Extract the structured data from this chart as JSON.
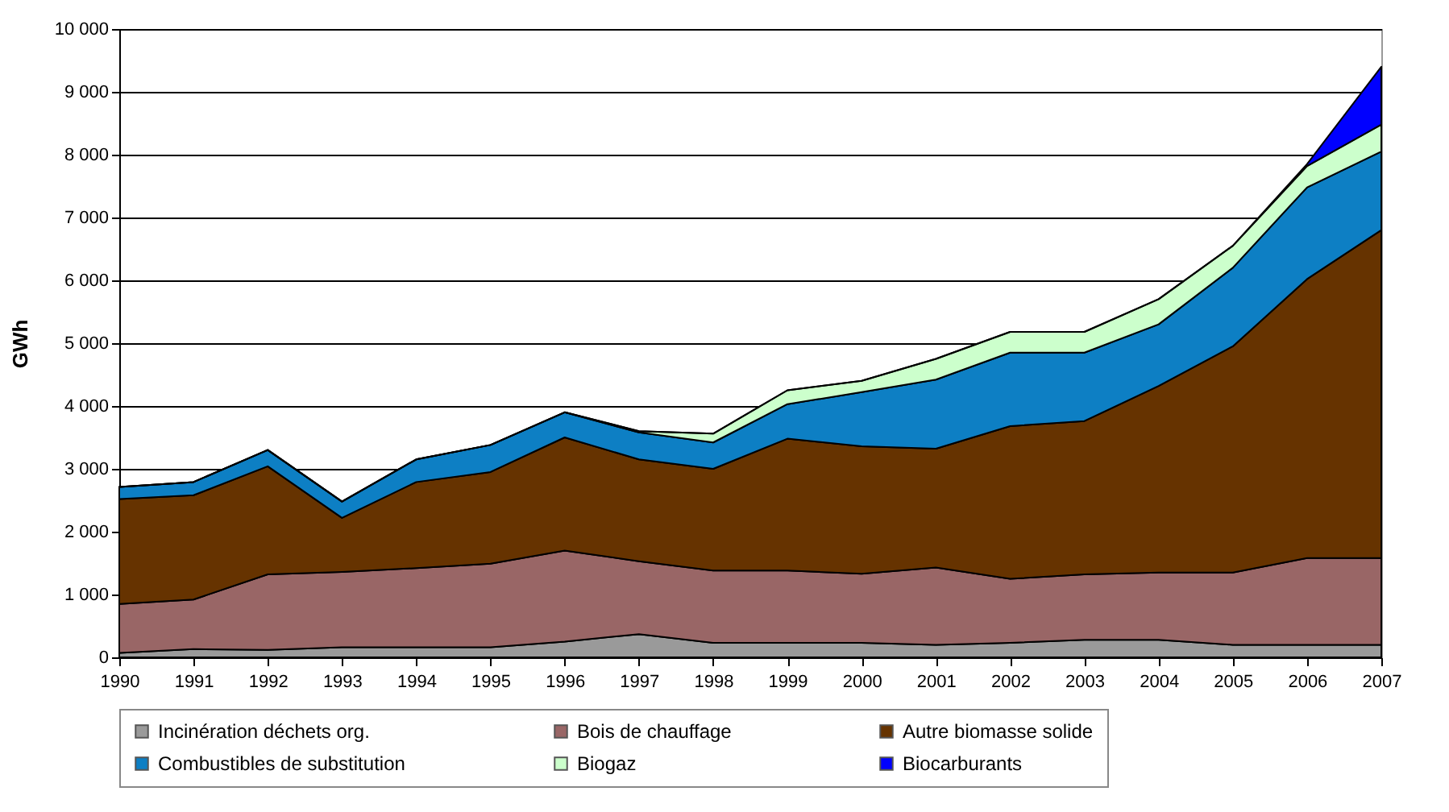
{
  "chart_data": {
    "type": "area",
    "stacked": true,
    "ylabel": "GWh",
    "categories": [
      "1990",
      "1991",
      "1992",
      "1993",
      "1994",
      "1995",
      "1996",
      "1997",
      "1998",
      "1999",
      "2000",
      "2001",
      "2002",
      "2003",
      "2004",
      "2005",
      "2006",
      "2007"
    ],
    "series": [
      {
        "name": "Incinération déchets org.",
        "color": "#9a9a9a",
        "values": [
          70,
          130,
          120,
          160,
          160,
          160,
          250,
          370,
          230,
          230,
          230,
          200,
          230,
          280,
          280,
          200,
          200,
          200
        ]
      },
      {
        "name": "Bois de chauffage",
        "color": "#996666",
        "values": [
          780,
          790,
          1200,
          1200,
          1260,
          1330,
          1450,
          1160,
          1150,
          1150,
          1100,
          1230,
          1020,
          1040,
          1070,
          1150,
          1380,
          1380
        ]
      },
      {
        "name": "Autre biomasse solide",
        "color": "#663300",
        "values": [
          1670,
          1660,
          1720,
          860,
          1370,
          1460,
          1800,
          1620,
          1620,
          2100,
          2030,
          1890,
          2430,
          2440,
          2970,
          3600,
          4440,
          5220
        ]
      },
      {
        "name": "Combustibles de substitution",
        "color": "#0d7fc4",
        "values": [
          190,
          210,
          260,
          260,
          360,
          430,
          400,
          430,
          420,
          550,
          860,
          1100,
          1170,
          1090,
          980,
          1250,
          1460,
          1250
        ]
      },
      {
        "name": "Biogaz",
        "color": "#ccffcc",
        "values": [
          0,
          0,
          0,
          0,
          0,
          0,
          0,
          20,
          140,
          220,
          180,
          330,
          330,
          330,
          400,
          350,
          340,
          430
        ]
      },
      {
        "name": "Biocarburants",
        "color": "#0000ff",
        "values": [
          0,
          0,
          0,
          0,
          0,
          0,
          0,
          0,
          0,
          0,
          0,
          0,
          0,
          0,
          0,
          0,
          30,
          920
        ]
      }
    ],
    "ylim": [
      0,
      10000
    ],
    "yticks": [
      0,
      {
        "value": 1000,
        "label": "1 000"
      },
      {
        "value": 2000,
        "label": "2 000"
      },
      {
        "value": 3000,
        "label": "3 000"
      },
      {
        "value": 4000,
        "label": "4 000"
      },
      {
        "value": 5000,
        "label": "5 000"
      },
      {
        "value": 6000,
        "label": "6 000"
      },
      {
        "value": 7000,
        "label": "7 000"
      },
      {
        "value": 8000,
        "label": "8 000"
      },
      {
        "value": 9000,
        "label": "9 000"
      },
      {
        "value": 10000,
        "label": "10 000"
      }
    ],
    "grid": "y",
    "legend": "bottom"
  }
}
